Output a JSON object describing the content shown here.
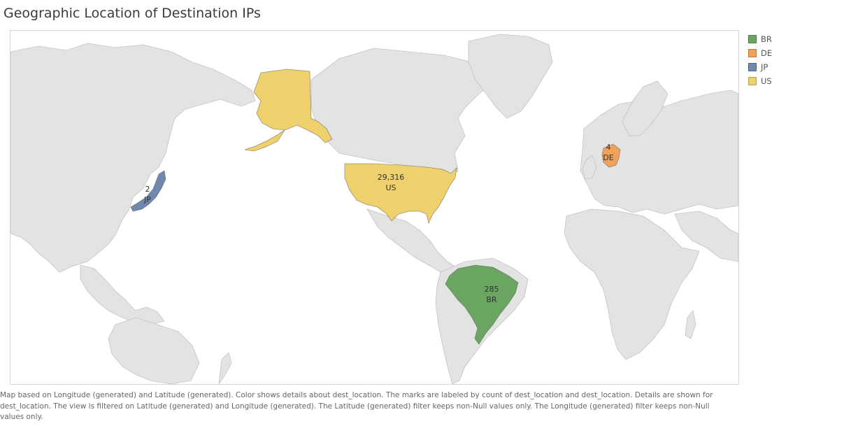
{
  "title": "Geographic Location of Destination IPs",
  "legend": {
    "items": [
      {
        "code": "BR",
        "color": "#6aa561"
      },
      {
        "code": "DE",
        "color": "#f0a25a"
      },
      {
        "code": "JP",
        "color": "#6f88ac"
      },
      {
        "code": "US",
        "color": "#eed06c"
      }
    ]
  },
  "marks": [
    {
      "location": "US",
      "count": "29,316"
    },
    {
      "location": "BR",
      "count": "285"
    },
    {
      "location": "DE",
      "count": "4"
    },
    {
      "location": "JP",
      "count": "2"
    }
  ],
  "caption": "Map based on Longitude (generated) and Latitude (generated).  Color shows details about dest_location.  The marks are labeled by count of dest_location and dest_location.  Details are shown for dest_location. The view is filtered on Latitude (generated) and Longitude (generated). The Latitude (generated) filter keeps non-Null values only. The Longitude (generated) filter keeps non-Null values only.",
  "colors": {
    "land": "#e3e3e3",
    "land_stroke": "#c4c4c4",
    "background": "#ffffff"
  }
}
